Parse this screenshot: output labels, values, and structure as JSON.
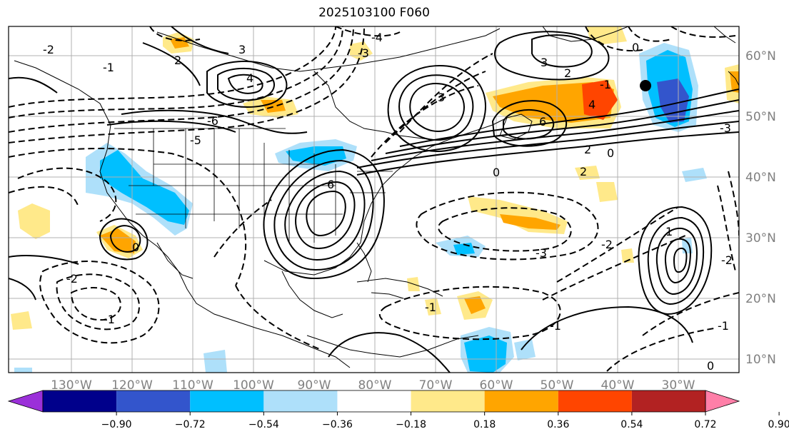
{
  "title": "2025103100 F060",
  "map": {
    "lon_labels": [
      "130°W",
      "120°W",
      "110°W",
      "100°W",
      "90°W",
      "80°W",
      "70°W",
      "60°W",
      "50°W",
      "40°W",
      "30°W"
    ],
    "lat_labels": [
      "60°N",
      "50°N",
      "40°N",
      "30°N",
      "20°N",
      "10°N"
    ],
    "contour_labels": [
      "2",
      "3",
      "4",
      "-3",
      "-4",
      "-2",
      "-1",
      "0",
      "6",
      "-6",
      "3",
      "4",
      "2",
      "-5",
      "-1",
      "-2",
      "0",
      "3",
      "-3",
      "-2",
      "1",
      "-1",
      "2",
      "-1",
      "-2",
      "0",
      "-1",
      "6",
      "2",
      "0",
      "0",
      "-1",
      "-3"
    ],
    "marker": "storm-center"
  },
  "colorbar": {
    "ticks": [
      "−0.90",
      "−0.72",
      "−0.54",
      "−0.36",
      "−0.18",
      "0.18",
      "0.36",
      "0.54",
      "0.72",
      "0.90"
    ],
    "colors": [
      "#9b30d9",
      "#00008b",
      "#3355cc",
      "#00bfff",
      "#aee0fa",
      "#ffffff",
      "#ffe98a",
      "#ffa500",
      "#ff4500",
      "#b22222",
      "#ff7fa8"
    ]
  }
}
